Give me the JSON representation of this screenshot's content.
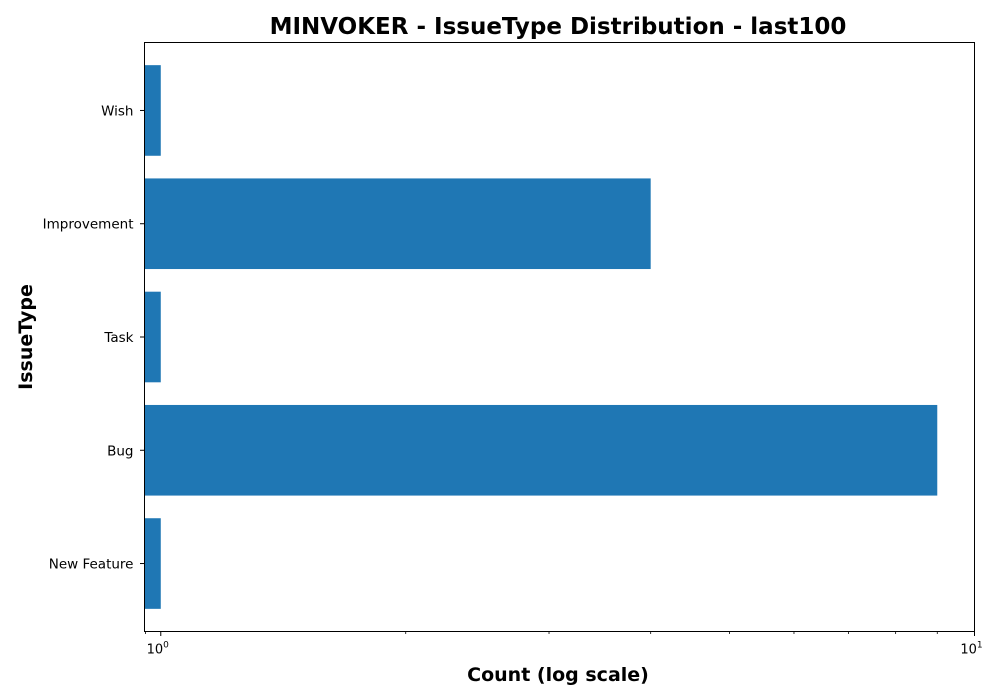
{
  "chart_data": {
    "type": "bar",
    "orientation": "horizontal",
    "title": "MINVOKER - IssueType Distribution - last100",
    "xlabel": "Count (log scale)",
    "ylabel": "IssueType",
    "x_scale": "log",
    "xlim": [
      0.955,
      10
    ],
    "categories": [
      "New Feature",
      "Bug",
      "Task",
      "Improvement",
      "Wish"
    ],
    "values": [
      1,
      9,
      1,
      4,
      1
    ],
    "bar_color": "#1f77b4",
    "grid": false,
    "x_major_ticks": [
      {
        "value": 1,
        "base": "10",
        "exponent": "0"
      },
      {
        "value": 10,
        "base": "10",
        "exponent": "1"
      }
    ]
  }
}
